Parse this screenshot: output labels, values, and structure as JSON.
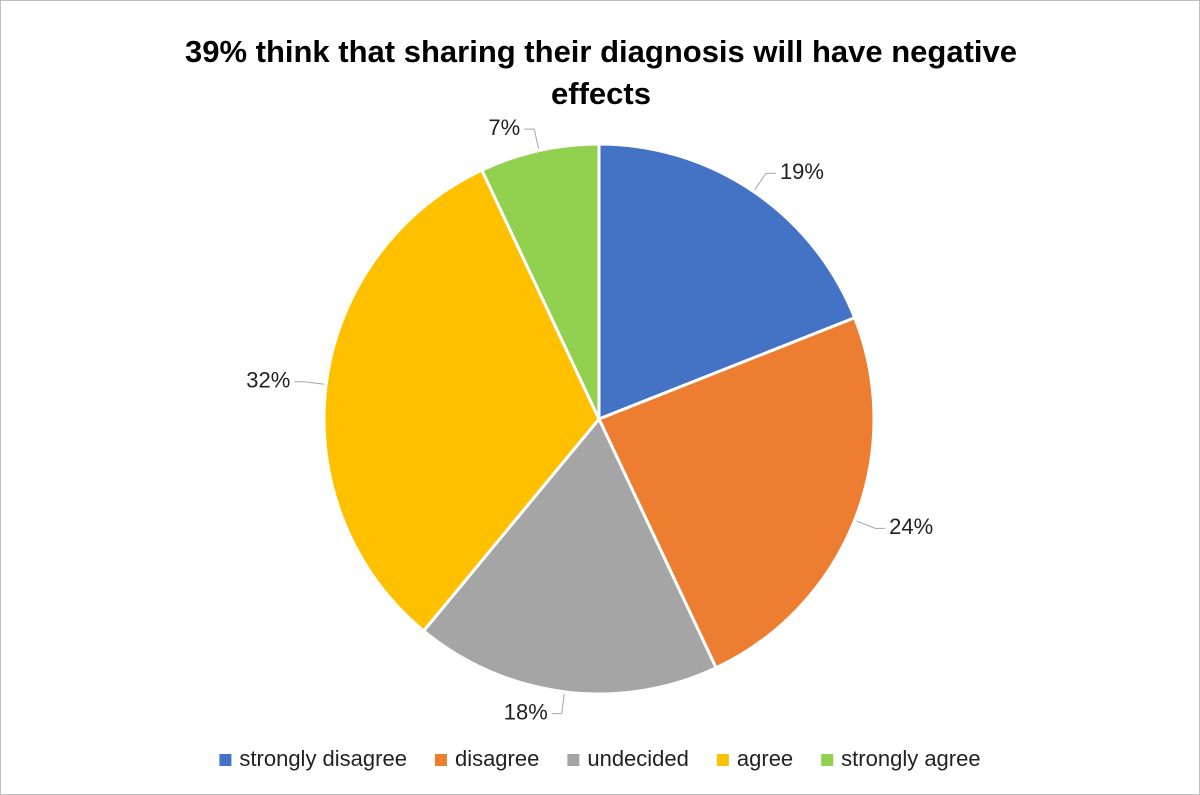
{
  "chart_data": {
    "type": "pie",
    "title": "39% think that sharing their diagnosis will have negative effects",
    "categories": [
      "strongly disagree",
      "disagree",
      "undecided",
      "agree",
      "strongly agree"
    ],
    "values": [
      19,
      24,
      18,
      32,
      7
    ],
    "value_labels": [
      "19%",
      "24%",
      "18%",
      "32%",
      "7%"
    ],
    "colors": [
      "#4472c4",
      "#ed7d31",
      "#a5a5a5",
      "#ffc000",
      "#92d050"
    ],
    "legend": "bottom"
  }
}
